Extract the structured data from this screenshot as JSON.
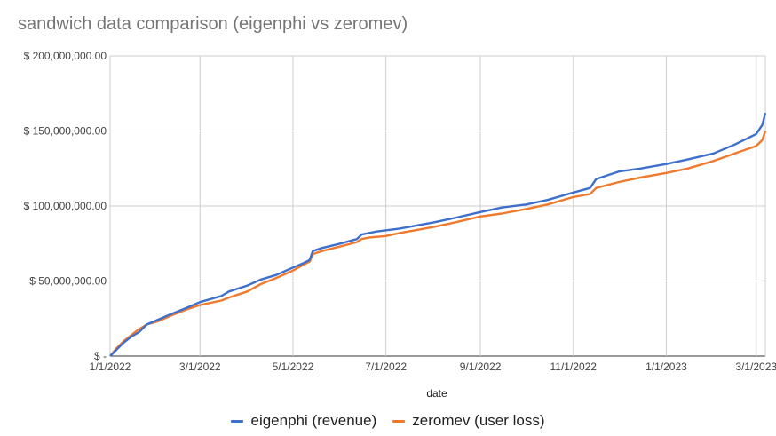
{
  "chart_data": {
    "type": "line",
    "title": "sandwich data comparison (eigenphi vs zeromev)",
    "xlabel": "date",
    "ylabel": "",
    "x_ticks": [
      "1/1/2022",
      "3/1/2022",
      "5/1/2022",
      "7/1/2022",
      "9/1/2022",
      "11/1/2022",
      "1/1/2023",
      "3/1/2023"
    ],
    "y_ticks": [
      "$ -",
      "$ 50,000,000.00",
      "$ 100,000,000.00",
      "$ 150,000,000.00",
      "$ 200,000,000.00"
    ],
    "ylim": [
      0,
      200000000
    ],
    "xlim": [
      "2022-01-01",
      "2023-03-07"
    ],
    "grid": true,
    "legend_position": "bottom",
    "series": [
      {
        "name": "eigenphi (revenue)",
        "color": "#3d6fcb",
        "points": [
          [
            "2022-01-01",
            0
          ],
          [
            "2022-01-05",
            4000000
          ],
          [
            "2022-01-10",
            9000000
          ],
          [
            "2022-01-15",
            13000000
          ],
          [
            "2022-01-20",
            16000000
          ],
          [
            "2022-01-25",
            21000000
          ],
          [
            "2022-02-01",
            24000000
          ],
          [
            "2022-02-10",
            28000000
          ],
          [
            "2022-02-20",
            32000000
          ],
          [
            "2022-03-01",
            36000000
          ],
          [
            "2022-03-15",
            40000000
          ],
          [
            "2022-03-20",
            43000000
          ],
          [
            "2022-04-01",
            47000000
          ],
          [
            "2022-04-10",
            51000000
          ],
          [
            "2022-04-20",
            54000000
          ],
          [
            "2022-05-01",
            59000000
          ],
          [
            "2022-05-08",
            62000000
          ],
          [
            "2022-05-12",
            64000000
          ],
          [
            "2022-05-14",
            70000000
          ],
          [
            "2022-05-20",
            72000000
          ],
          [
            "2022-06-01",
            75000000
          ],
          [
            "2022-06-12",
            78000000
          ],
          [
            "2022-06-15",
            81000000
          ],
          [
            "2022-06-25",
            83000000
          ],
          [
            "2022-07-10",
            85000000
          ],
          [
            "2022-08-01",
            89000000
          ],
          [
            "2022-08-15",
            92000000
          ],
          [
            "2022-09-01",
            96000000
          ],
          [
            "2022-09-15",
            99000000
          ],
          [
            "2022-10-01",
            101000000
          ],
          [
            "2022-10-15",
            104000000
          ],
          [
            "2022-11-01",
            109000000
          ],
          [
            "2022-11-12",
            112000000
          ],
          [
            "2022-11-16",
            118000000
          ],
          [
            "2022-12-01",
            123000000
          ],
          [
            "2022-12-15",
            125000000
          ],
          [
            "2023-01-01",
            128000000
          ],
          [
            "2023-01-15",
            131000000
          ],
          [
            "2023-02-01",
            135000000
          ],
          [
            "2023-02-15",
            141000000
          ],
          [
            "2023-03-01",
            148000000
          ],
          [
            "2023-03-05",
            154000000
          ],
          [
            "2023-03-07",
            162000000
          ]
        ]
      },
      {
        "name": "zeromev (user loss)",
        "color": "#ef7a2e",
        "points": [
          [
            "2022-01-01",
            0
          ],
          [
            "2022-01-05",
            5000000
          ],
          [
            "2022-01-10",
            10000000
          ],
          [
            "2022-01-15",
            14000000
          ],
          [
            "2022-01-20",
            18000000
          ],
          [
            "2022-01-25",
            21000000
          ],
          [
            "2022-02-01",
            23000000
          ],
          [
            "2022-02-10",
            27000000
          ],
          [
            "2022-02-20",
            31000000
          ],
          [
            "2022-03-01",
            34000000
          ],
          [
            "2022-03-15",
            37000000
          ],
          [
            "2022-03-20",
            39000000
          ],
          [
            "2022-04-01",
            43000000
          ],
          [
            "2022-04-10",
            48000000
          ],
          [
            "2022-04-20",
            52000000
          ],
          [
            "2022-05-01",
            57000000
          ],
          [
            "2022-05-08",
            61000000
          ],
          [
            "2022-05-12",
            63000000
          ],
          [
            "2022-05-14",
            68000000
          ],
          [
            "2022-05-20",
            70000000
          ],
          [
            "2022-06-01",
            73000000
          ],
          [
            "2022-06-12",
            76000000
          ],
          [
            "2022-06-15",
            78000000
          ],
          [
            "2022-06-20",
            79000000
          ],
          [
            "2022-07-01",
            80000000
          ],
          [
            "2022-07-10",
            82000000
          ],
          [
            "2022-08-01",
            86000000
          ],
          [
            "2022-08-15",
            89000000
          ],
          [
            "2022-09-01",
            93000000
          ],
          [
            "2022-09-15",
            95000000
          ],
          [
            "2022-10-01",
            98000000
          ],
          [
            "2022-10-15",
            101000000
          ],
          [
            "2022-11-01",
            106000000
          ],
          [
            "2022-11-12",
            108000000
          ],
          [
            "2022-11-16",
            112000000
          ],
          [
            "2022-12-01",
            116000000
          ],
          [
            "2022-12-15",
            119000000
          ],
          [
            "2023-01-01",
            122000000
          ],
          [
            "2023-01-15",
            125000000
          ],
          [
            "2023-02-01",
            130000000
          ],
          [
            "2023-02-15",
            135000000
          ],
          [
            "2023-03-01",
            140000000
          ],
          [
            "2023-03-05",
            144000000
          ],
          [
            "2023-03-07",
            150000000
          ]
        ]
      }
    ]
  }
}
